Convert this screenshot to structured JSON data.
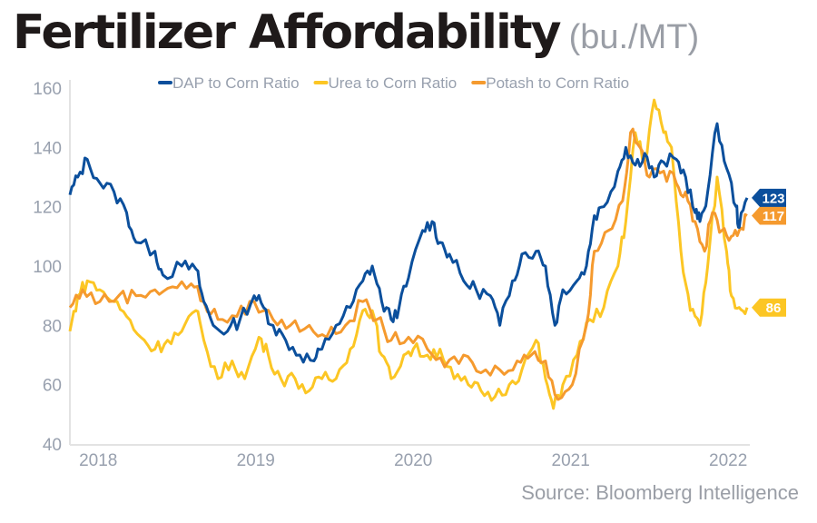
{
  "chart_data": {
    "type": "line",
    "title": "Fertilizer Affordability",
    "subtitle": "(bu./MT)",
    "source": "Source: Bloomberg Intelligence",
    "ylim": [
      40,
      160
    ],
    "yticks": [
      40,
      60,
      80,
      100,
      120,
      140,
      160
    ],
    "xlim": [
      2017.82,
      2022.12
    ],
    "xticks": [
      2018,
      2019,
      2020,
      2021,
      2022
    ],
    "grid": false,
    "legend_placement": "top",
    "series": [
      {
        "name": "DAP to Corn Ratio",
        "color": "#0b4f9c",
        "end_label": "123",
        "points": [
          [
            2017.82,
            124
          ],
          [
            2017.87,
            130
          ],
          [
            2017.93,
            136
          ],
          [
            2018.01,
            128
          ],
          [
            2018.1,
            125
          ],
          [
            2018.18,
            118
          ],
          [
            2018.24,
            108
          ],
          [
            2018.36,
            105
          ],
          [
            2018.41,
            97
          ],
          [
            2018.53,
            100
          ],
          [
            2018.62,
            99
          ],
          [
            2018.67,
            88
          ],
          [
            2018.73,
            80
          ],
          [
            2018.82,
            78
          ],
          [
            2018.9,
            82
          ],
          [
            2018.99,
            90
          ],
          [
            2019.05,
            86
          ],
          [
            2019.11,
            80
          ],
          [
            2019.19,
            75
          ],
          [
            2019.28,
            70
          ],
          [
            2019.37,
            68
          ],
          [
            2019.42,
            72
          ],
          [
            2019.51,
            80
          ],
          [
            2019.6,
            86
          ],
          [
            2019.68,
            95
          ],
          [
            2019.74,
            100
          ],
          [
            2019.8,
            88
          ],
          [
            2019.86,
            82
          ],
          [
            2019.91,
            86
          ],
          [
            2019.97,
            96
          ],
          [
            2020.06,
            112
          ],
          [
            2020.12,
            115
          ],
          [
            2020.17,
            108
          ],
          [
            2020.23,
            104
          ],
          [
            2020.32,
            95
          ],
          [
            2020.4,
            92
          ],
          [
            2020.49,
            90
          ],
          [
            2020.55,
            80
          ],
          [
            2020.63,
            95
          ],
          [
            2020.69,
            104
          ],
          [
            2020.78,
            105
          ],
          [
            2020.84,
            100
          ],
          [
            2020.9,
            80
          ],
          [
            2020.95,
            92
          ],
          [
            2021.04,
            95
          ],
          [
            2021.1,
            100
          ],
          [
            2021.15,
            117
          ],
          [
            2021.21,
            120
          ],
          [
            2021.3,
            132
          ],
          [
            2021.35,
            140
          ],
          [
            2021.41,
            134
          ],
          [
            2021.47,
            138
          ],
          [
            2021.53,
            130
          ],
          [
            2021.59,
            135
          ],
          [
            2021.67,
            136
          ],
          [
            2021.73,
            130
          ],
          [
            2021.79,
            118
          ],
          [
            2021.82,
            115
          ],
          [
            2021.87,
            125
          ],
          [
            2021.93,
            148
          ],
          [
            2021.99,
            133
          ],
          [
            2022.05,
            120
          ],
          [
            2022.07,
            113
          ],
          [
            2022.12,
            123
          ]
        ]
      },
      {
        "name": "Urea to Corn Ratio",
        "color": "#fcc624",
        "end_label": "86",
        "points": [
          [
            2017.82,
            78
          ],
          [
            2017.87,
            90
          ],
          [
            2017.93,
            95
          ],
          [
            2018.01,
            92
          ],
          [
            2018.1,
            88
          ],
          [
            2018.18,
            83
          ],
          [
            2018.27,
            76
          ],
          [
            2018.36,
            72
          ],
          [
            2018.44,
            75
          ],
          [
            2018.53,
            78
          ],
          [
            2018.62,
            85
          ],
          [
            2018.67,
            75
          ],
          [
            2018.76,
            62
          ],
          [
            2018.85,
            68
          ],
          [
            2018.93,
            62
          ],
          [
            2019.02,
            76
          ],
          [
            2019.08,
            70
          ],
          [
            2019.16,
            62
          ],
          [
            2019.25,
            62
          ],
          [
            2019.34,
            58
          ],
          [
            2019.42,
            62
          ],
          [
            2019.51,
            62
          ],
          [
            2019.6,
            72
          ],
          [
            2019.68,
            85
          ],
          [
            2019.74,
            85
          ],
          [
            2019.8,
            70
          ],
          [
            2019.86,
            62
          ],
          [
            2019.94,
            70
          ],
          [
            2020.0,
            72
          ],
          [
            2020.09,
            70
          ],
          [
            2020.17,
            72
          ],
          [
            2020.26,
            62
          ],
          [
            2020.35,
            60
          ],
          [
            2020.43,
            58
          ],
          [
            2020.52,
            56
          ],
          [
            2020.61,
            60
          ],
          [
            2020.69,
            65
          ],
          [
            2020.78,
            75
          ],
          [
            2020.84,
            62
          ],
          [
            2020.89,
            52
          ],
          [
            2020.95,
            60
          ],
          [
            2021.04,
            70
          ],
          [
            2021.12,
            82
          ],
          [
            2021.21,
            86
          ],
          [
            2021.3,
            100
          ],
          [
            2021.35,
            115
          ],
          [
            2021.41,
            145
          ],
          [
            2021.47,
            135
          ],
          [
            2021.53,
            156
          ],
          [
            2021.59,
            145
          ],
          [
            2021.64,
            140
          ],
          [
            2021.7,
            105
          ],
          [
            2021.76,
            85
          ],
          [
            2021.82,
            80
          ],
          [
            2021.87,
            100
          ],
          [
            2021.93,
            130
          ],
          [
            2021.99,
            105
          ],
          [
            2022.02,
            90
          ],
          [
            2022.07,
            86
          ],
          [
            2022.12,
            86
          ]
        ]
      },
      {
        "name": "Potash to Corn Ratio",
        "color": "#f59a2e",
        "end_label": "117",
        "points": [
          [
            2017.82,
            86
          ],
          [
            2017.9,
            92
          ],
          [
            2018.01,
            88
          ],
          [
            2018.13,
            90
          ],
          [
            2018.24,
            90
          ],
          [
            2018.36,
            92
          ],
          [
            2018.47,
            93
          ],
          [
            2018.59,
            94
          ],
          [
            2018.67,
            88
          ],
          [
            2018.76,
            82
          ],
          [
            2018.88,
            83
          ],
          [
            2018.99,
            88
          ],
          [
            2019.11,
            82
          ],
          [
            2019.22,
            80
          ],
          [
            2019.34,
            80
          ],
          [
            2019.45,
            76
          ],
          [
            2019.57,
            80
          ],
          [
            2019.68,
            88
          ],
          [
            2019.77,
            82
          ],
          [
            2019.86,
            75
          ],
          [
            2019.97,
            76
          ],
          [
            2020.09,
            72
          ],
          [
            2020.2,
            66
          ],
          [
            2020.32,
            70
          ],
          [
            2020.43,
            64
          ],
          [
            2020.55,
            65
          ],
          [
            2020.66,
            68
          ],
          [
            2020.75,
            70
          ],
          [
            2020.84,
            68
          ],
          [
            2020.92,
            55
          ],
          [
            2021.01,
            60
          ],
          [
            2021.1,
            80
          ],
          [
            2021.15,
            105
          ],
          [
            2021.24,
            112
          ],
          [
            2021.33,
            122
          ],
          [
            2021.38,
            145
          ],
          [
            2021.44,
            140
          ],
          [
            2021.5,
            130
          ],
          [
            2021.59,
            132
          ],
          [
            2021.67,
            128
          ],
          [
            2021.73,
            125
          ],
          [
            2021.79,
            115
          ],
          [
            2021.85,
            105
          ],
          [
            2021.9,
            118
          ],
          [
            2021.96,
            112
          ],
          [
            2022.02,
            110
          ],
          [
            2022.07,
            112
          ],
          [
            2022.12,
            117
          ]
        ]
      }
    ]
  }
}
